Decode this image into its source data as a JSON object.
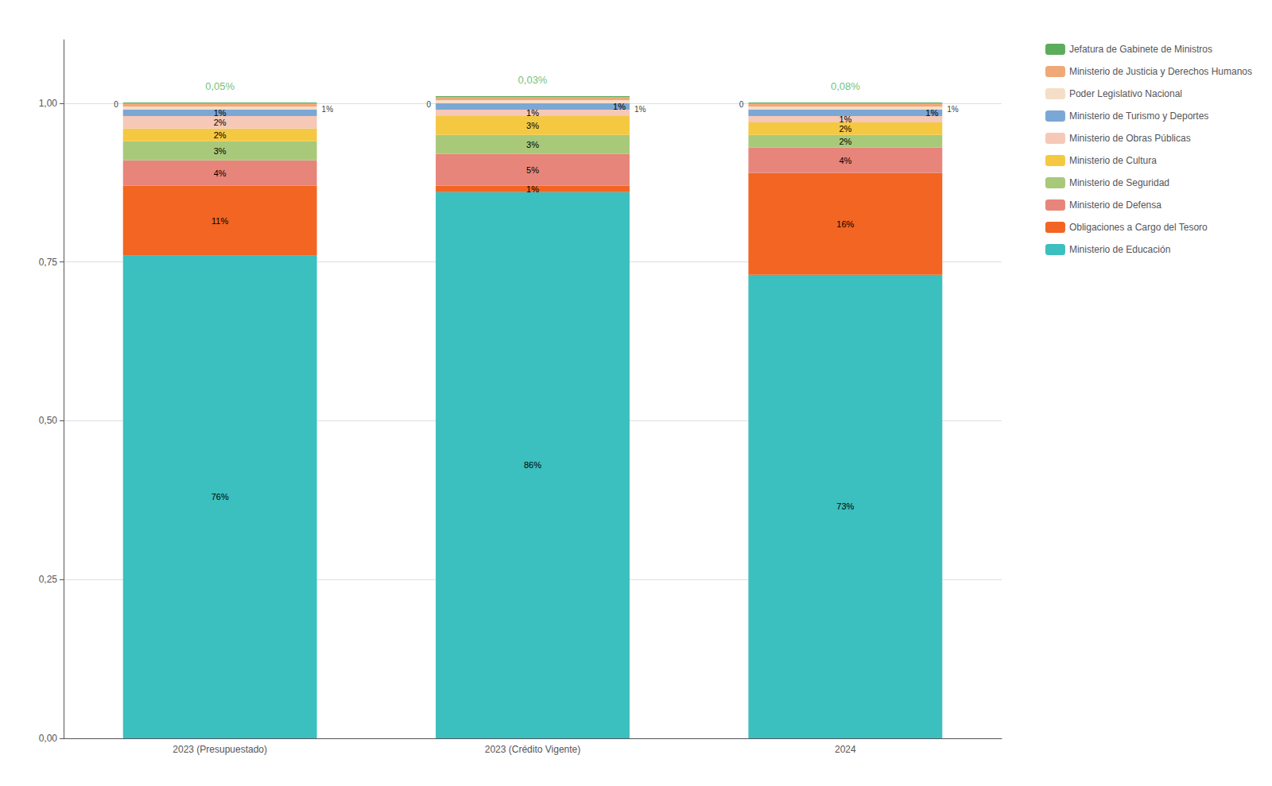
{
  "chart_data": {
    "type": "bar",
    "stacked": true,
    "categories": [
      "2023 (Presupuestado)",
      "2023 (Crédito Vigente)",
      "2024"
    ],
    "series": [
      {
        "name": "Ministerio de Educación",
        "color": "#3BBFBF",
        "values": [
          0.76,
          0.86,
          0.73
        ],
        "value_labels": [
          "76%",
          "86%",
          "73%"
        ]
      },
      {
        "name": "Obligaciones a Cargo del Tesoro",
        "color": "#F26522",
        "values": [
          0.11,
          0.01,
          0.16
        ],
        "value_labels": [
          "11%",
          "1%",
          "16%"
        ]
      },
      {
        "name": "Ministerio de Defensa",
        "color": "#E8857A",
        "values": [
          0.04,
          0.05,
          0.04
        ],
        "value_labels": [
          "4%",
          "5%",
          "4%"
        ]
      },
      {
        "name": "Ministerio de Seguridad",
        "color": "#A8C97A",
        "values": [
          0.03,
          0.03,
          0.02
        ],
        "value_labels": [
          "3%",
          "3%",
          "2%"
        ]
      },
      {
        "name": "Ministerio de Cultura",
        "color": "#F5C842",
        "values": [
          0.02,
          0.03,
          0.02
        ],
        "value_labels": [
          "2%",
          "3%",
          "2%"
        ]
      },
      {
        "name": "Ministerio de Obras Públicas",
        "color": "#F5C8B8",
        "values": [
          0.02,
          0.01,
          0.01
        ],
        "value_labels": [
          "2%",
          "1%",
          "1%"
        ]
      },
      {
        "name": "Ministerio de Turismo y Deportes",
        "color": "#7BA7D4",
        "values": [
          0.01,
          0.01,
          0.01
        ],
        "value_labels": [
          "1%",
          "1%",
          "1%"
        ]
      },
      {
        "name": "Poder Legislativo Nacional",
        "color": "#F5DEC8",
        "values": [
          0.005,
          0.005,
          0.005
        ],
        "value_labels": [
          null,
          null,
          null
        ]
      },
      {
        "name": "Ministerio de Justicia y Derechos Humanos",
        "color": "#F0A878",
        "values": [
          0.005,
          0.005,
          0.005
        ],
        "value_labels": [
          null,
          null,
          null
        ]
      },
      {
        "name": "Jefatura de Gabinete de Ministros",
        "color": "#5BAD5B",
        "values": [
          0.001,
          0.001,
          0.001
        ],
        "value_labels": [
          null,
          null,
          null
        ]
      }
    ],
    "data_labels": true,
    "ylim": [
      0,
      1.1
    ],
    "yticks": [
      {
        "value": 0.0,
        "label": "0,00"
      },
      {
        "value": 0.25,
        "label": "0,25"
      },
      {
        "value": 0.5,
        "label": "0,50"
      },
      {
        "value": 0.75,
        "label": "0,75"
      },
      {
        "value": 1.0,
        "label": "1,00"
      }
    ],
    "grid": true,
    "legend": "right",
    "annotations": [
      {
        "category": "2023 (Presupuestado)",
        "y": 1.013,
        "text": "0,05%",
        "color": "#4CAF50"
      },
      {
        "category": "2023 (Crédito Vigente)",
        "y": 1.023,
        "text": "0,03%",
        "color": "#4CAF50"
      },
      {
        "category": "2024",
        "y": 1.013,
        "text": "0,08%",
        "color": "#4CAF50"
      },
      {
        "category": "2023 (Presupuestado)",
        "y": 0.9985,
        "text": "0"
      },
      {
        "category": "2023 (Crédito Vigente)",
        "y": 0.9985,
        "text": "0"
      },
      {
        "category": "2024",
        "y": 0.9985,
        "text": "0"
      },
      {
        "category": "2023 (Presupuestado)",
        "y": 0.991,
        "text": "1%"
      },
      {
        "category": "2023 (Crédito Vigente)",
        "y": 0.991,
        "text": "1%"
      },
      {
        "category": "2024",
        "y": 0.991,
        "text": "1%"
      }
    ]
  }
}
